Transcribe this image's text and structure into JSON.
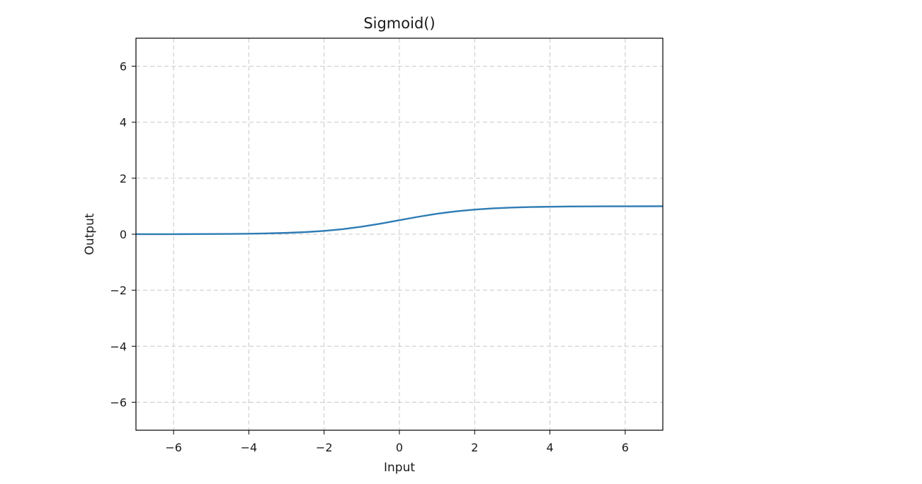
{
  "chart_data": {
    "type": "line",
    "title": "Sigmoid()",
    "xlabel": "Input",
    "ylabel": "Output",
    "xlim": [
      -7,
      7
    ],
    "ylim": [
      -7,
      7
    ],
    "xticks": [
      -6,
      -4,
      -2,
      0,
      2,
      4,
      6
    ],
    "yticks": [
      -6,
      -4,
      -2,
      0,
      2,
      4,
      6
    ],
    "xtick_labels": [
      "−6",
      "−4",
      "−2",
      "0",
      "2",
      "4",
      "6"
    ],
    "ytick_labels": [
      "−6",
      "−4",
      "−2",
      "0",
      "2",
      "4",
      "6"
    ],
    "grid": true,
    "legend": "none",
    "series": [
      {
        "color": "#2e7cb5",
        "x": [
          -7,
          -6.5,
          -6,
          -5.5,
          -5,
          -4.5,
          -4,
          -3.5,
          -3,
          -2.5,
          -2,
          -1.5,
          -1,
          -0.5,
          0,
          0.5,
          1,
          1.5,
          2,
          2.5,
          3,
          3.5,
          4,
          4.5,
          5,
          5.5,
          6,
          6.5,
          7
        ],
        "y": [
          0.0009,
          0.0015,
          0.0025,
          0.0041,
          0.0067,
          0.011,
          0.018,
          0.0293,
          0.0474,
          0.0759,
          0.1192,
          0.1824,
          0.2689,
          0.3775,
          0.5,
          0.6225,
          0.7311,
          0.8176,
          0.8808,
          0.9241,
          0.9526,
          0.9707,
          0.982,
          0.989,
          0.9933,
          0.9959,
          0.9975,
          0.9985,
          0.9991
        ]
      }
    ]
  }
}
